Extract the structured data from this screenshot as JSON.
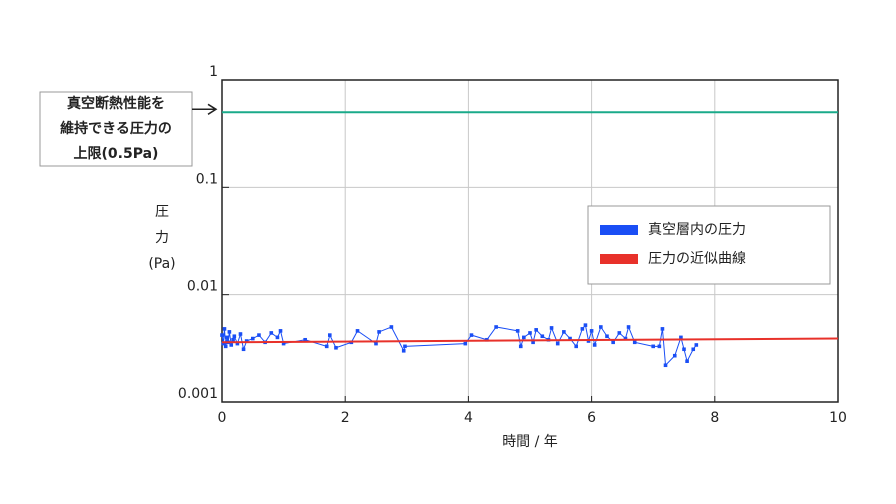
{
  "chart_data": {
    "type": "line",
    "y_label": [
      "圧",
      "力",
      "(Pa)"
    ],
    "x_label": "時間 / 年",
    "xlim": [
      0,
      10
    ],
    "xticks": [
      0,
      2,
      4,
      6,
      8,
      10
    ],
    "ylim": [
      0.001,
      1
    ],
    "yticks": [
      1,
      0.1,
      0.01,
      0.001
    ],
    "log_y": true,
    "grid": true,
    "legend": "right",
    "series": [
      {
        "name": "真空層内の圧力",
        "color": "#1a4ef5",
        "marker": "square",
        "x": [
          0.0,
          0.02,
          0.04,
          0.06,
          0.08,
          0.1,
          0.12,
          0.15,
          0.18,
          0.2,
          0.25,
          0.3,
          0.35,
          0.4,
          0.5,
          0.6,
          0.7,
          0.8,
          0.9,
          0.95,
          1.0,
          1.35,
          1.7,
          1.75,
          1.85,
          2.1,
          2.2,
          2.5,
          2.55,
          2.75,
          2.95,
          2.97,
          3.95,
          4.05,
          4.3,
          4.45,
          4.8,
          4.85,
          4.9,
          5.0,
          5.05,
          5.1,
          5.2,
          5.3,
          5.35,
          5.45,
          5.55,
          5.65,
          5.75,
          5.85,
          5.9,
          5.95,
          6.0,
          6.05,
          6.15,
          6.25,
          6.35,
          6.45,
          6.55,
          6.6,
          6.7,
          7.0,
          7.1,
          7.15,
          7.2,
          7.35,
          7.45,
          7.5,
          7.55,
          7.65,
          7.7
        ],
        "values": [
          0.0042,
          0.0035,
          0.0048,
          0.0033,
          0.004,
          0.0036,
          0.0045,
          0.0034,
          0.0038,
          0.0041,
          0.0035,
          0.0043,
          0.0031,
          0.0037,
          0.0039,
          0.0042,
          0.0036,
          0.0044,
          0.004,
          0.0046,
          0.0035,
          0.0038,
          0.0033,
          0.0042,
          0.0032,
          0.0036,
          0.0046,
          0.0035,
          0.0045,
          0.005,
          0.003,
          0.0033,
          0.0035,
          0.0042,
          0.0038,
          0.005,
          0.0046,
          0.0033,
          0.004,
          0.0044,
          0.0036,
          0.0047,
          0.0041,
          0.0038,
          0.0049,
          0.0035,
          0.0045,
          0.0039,
          0.0033,
          0.0048,
          0.0052,
          0.0037,
          0.0046,
          0.0034,
          0.005,
          0.0041,
          0.0036,
          0.0044,
          0.0039,
          0.005,
          0.0036,
          0.0033,
          0.0033,
          0.0048,
          0.0022,
          0.0027,
          0.004,
          0.0031,
          0.0024,
          0.0031,
          0.0034
        ]
      },
      {
        "name": "圧力の近似曲線",
        "color": "#e8312a",
        "x": [
          0,
          10
        ],
        "values": [
          0.0036,
          0.0039
        ]
      }
    ],
    "threshold": {
      "value": 0.5,
      "color": "#1aaa8a",
      "label": [
        "真空断熱性能を",
        "維持できる圧力の",
        "上限(0.5Pa)"
      ]
    }
  }
}
